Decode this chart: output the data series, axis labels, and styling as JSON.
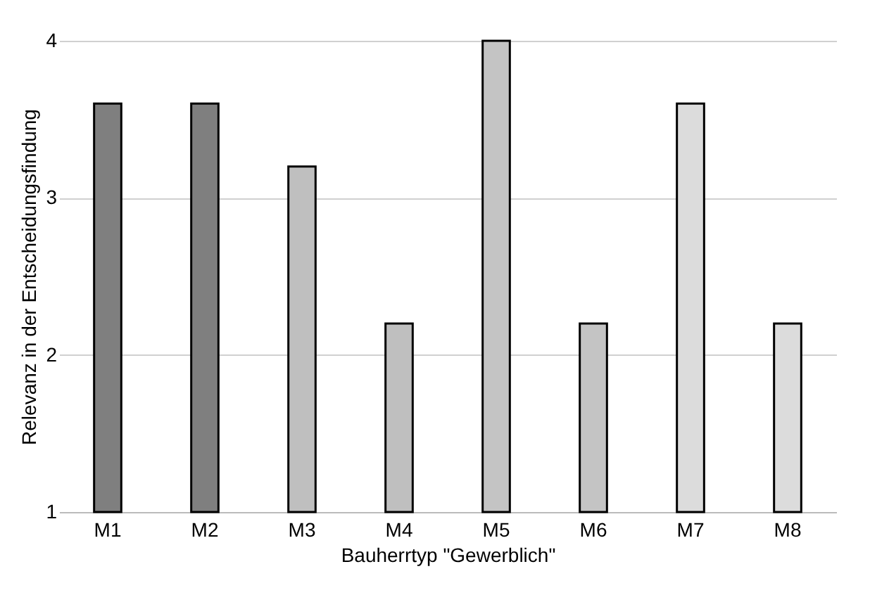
{
  "chart_data": {
    "type": "bar",
    "xlabel": "Bauherrtyp \"Gewerblich\"",
    "ylabel": "Relevanz in der Entscheidungsfindung",
    "categories": [
      "M1",
      "M2",
      "M3",
      "M4",
      "M5",
      "M6",
      "M7",
      "M8"
    ],
    "values": [
      3.6,
      3.6,
      3.2,
      2.2,
      4,
      2.2,
      3.6,
      2.2
    ],
    "colors": [
      "#7f7f7f",
      "#7f7f7f",
      "#bfbfbf",
      "#bfbfbf",
      "#c4c4c4",
      "#c4c4c4",
      "#dcdcdc",
      "#dcdcdc"
    ],
    "ylim": [
      1,
      4
    ],
    "yticks": [
      1,
      2,
      3,
      4
    ],
    "grid": "y"
  }
}
